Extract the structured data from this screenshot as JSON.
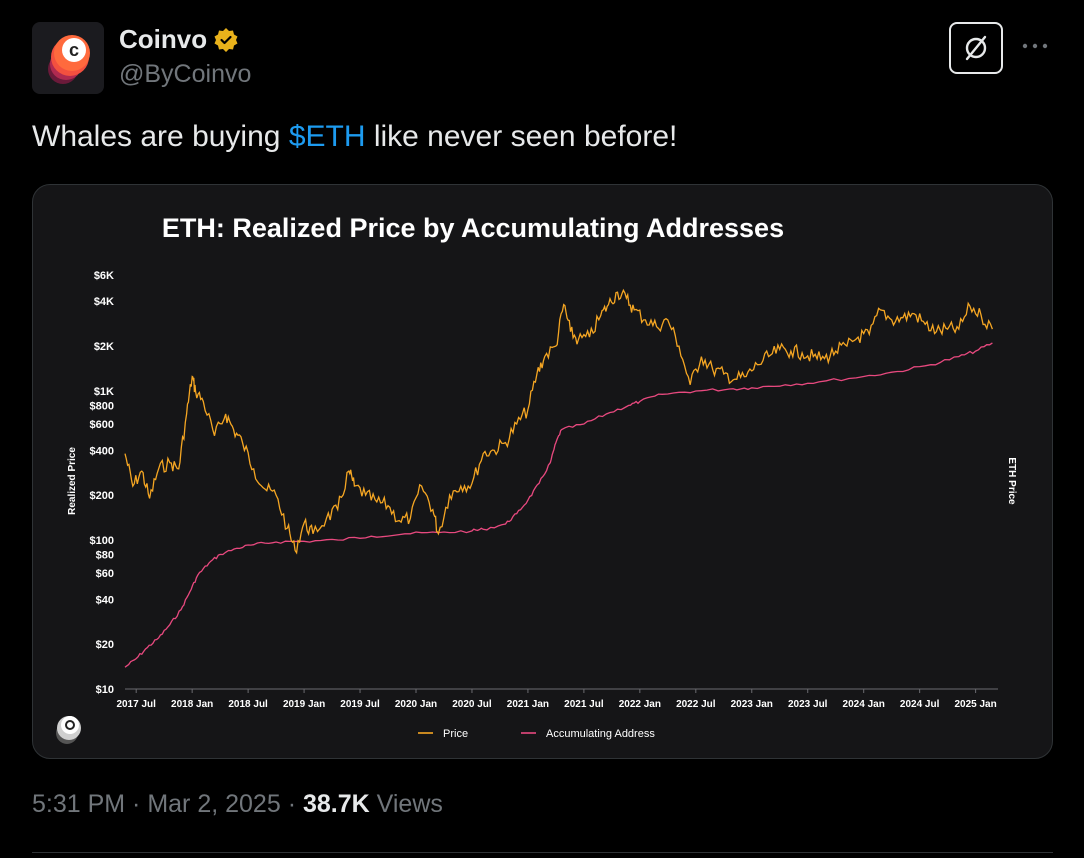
{
  "author": {
    "name": "Coinvo",
    "handle": "@ByCoinvo",
    "avatar_letter": "c",
    "verified_color": "#e9b21b"
  },
  "header_icons": {
    "grok": "grok-icon",
    "more": "more-horizontal-icon"
  },
  "tweet": {
    "text_before": "Whales are buying ",
    "cashtag": "$ETH",
    "text_after": " like never seen before!",
    "link_color": "#1d9bf0"
  },
  "meta": {
    "time": "5:31 PM",
    "sep1": " · ",
    "date": "Mar 2, 2025",
    "sep2": " · ",
    "views_count": "38.7K",
    "views_label": " Views"
  },
  "chart_data": {
    "type": "line",
    "title": "ETH: Realized Price by Accumulating Addresses",
    "ylabel": "Realized Price",
    "ylabel_right": "ETH Price",
    "yscale": "log",
    "ylim": [
      10,
      6000
    ],
    "yticks": [
      10,
      20,
      40,
      60,
      80,
      100,
      200,
      400,
      600,
      800,
      1000,
      2000,
      4000,
      6000
    ],
    "ytick_labels": [
      "$10",
      "$20",
      "$40",
      "$60",
      "$80",
      "$100",
      "$200",
      "$400",
      "$600",
      "$800",
      "$1K",
      "$2K",
      "$4K",
      "$6K"
    ],
    "xlim": [
      2017.4,
      2025.2
    ],
    "xticks": [
      2017.5,
      2018.0,
      2018.5,
      2019.0,
      2019.5,
      2020.0,
      2020.5,
      2021.0,
      2021.5,
      2022.0,
      2022.5,
      2023.0,
      2023.5,
      2024.0,
      2024.5,
      2025.0
    ],
    "xtick_labels": [
      "2017 Jul",
      "2018 Jan",
      "2018 Jul",
      "2019 Jan",
      "2019 Jul",
      "2020 Jan",
      "2020 Jul",
      "2021 Jan",
      "2021 Jul",
      "2022 Jan",
      "2022 Jul",
      "2023 Jan",
      "2023 Jul",
      "2024 Jan",
      "2024 Jul",
      "2025 Jan"
    ],
    "legend_position": "bottom",
    "grid": false,
    "series": [
      {
        "name": "Price",
        "color": "#f5a623",
        "x": [
          2017.4,
          2017.47,
          2017.55,
          2017.62,
          2017.7,
          2017.8,
          2017.88,
          2017.95,
          2018.0,
          2018.03,
          2018.1,
          2018.2,
          2018.3,
          2018.37,
          2018.45,
          2018.55,
          2018.65,
          2018.75,
          2018.85,
          2018.92,
          2019.0,
          2019.08,
          2019.2,
          2019.3,
          2019.4,
          2019.45,
          2019.55,
          2019.65,
          2019.75,
          2019.85,
          2019.95,
          2020.05,
          2020.15,
          2020.2,
          2020.3,
          2020.4,
          2020.5,
          2020.6,
          2020.7,
          2020.8,
          2020.9,
          2021.0,
          2021.08,
          2021.15,
          2021.25,
          2021.32,
          2021.38,
          2021.45,
          2021.55,
          2021.65,
          2021.72,
          2021.8,
          2021.88,
          2021.95,
          2022.05,
          2022.15,
          2022.25,
          2022.35,
          2022.45,
          2022.55,
          2022.65,
          2022.75,
          2022.85,
          2022.95,
          2023.05,
          2023.15,
          2023.25,
          2023.35,
          2023.45,
          2023.55,
          2023.65,
          2023.75,
          2023.85,
          2023.95,
          2024.05,
          2024.15,
          2024.25,
          2024.35,
          2024.45,
          2024.55,
          2024.65,
          2024.75,
          2024.85,
          2024.95,
          2025.05,
          2025.15
        ],
        "y": [
          380,
          230,
          290,
          190,
          300,
          330,
          300,
          700,
          1250,
          1000,
          850,
          500,
          700,
          550,
          450,
          300,
          220,
          200,
          120,
          85,
          130,
          110,
          140,
          160,
          290,
          230,
          200,
          180,
          170,
          135,
          140,
          230,
          160,
          110,
          200,
          230,
          240,
          380,
          400,
          450,
          600,
          750,
          1300,
          1700,
          2000,
          3800,
          2500,
          2200,
          2300,
          3200,
          3800,
          4600,
          4200,
          3500,
          3000,
          2700,
          3000,
          2000,
          1100,
          1700,
          1400,
          1300,
          1200,
          1250,
          1500,
          1700,
          1900,
          1850,
          1800,
          1700,
          1650,
          1850,
          2000,
          2300,
          2400,
          3500,
          3000,
          3100,
          3300,
          2800,
          2500,
          2600,
          2600,
          3700,
          3200,
          2600
        ]
      },
      {
        "name": "Accumulating Address",
        "color": "#e8497f",
        "x": [
          2017.4,
          2017.5,
          2017.6,
          2017.7,
          2017.8,
          2017.9,
          2017.98,
          2018.05,
          2018.15,
          2018.25,
          2018.4,
          2018.55,
          2018.75,
          2019.0,
          2019.3,
          2019.6,
          2019.9,
          2020.2,
          2020.5,
          2020.6,
          2020.8,
          2020.9,
          2021.0,
          2021.1,
          2021.2,
          2021.25,
          2021.3,
          2021.5,
          2021.7,
          2021.9,
          2022.0,
          2022.2,
          2022.5,
          2022.8,
          2023.0,
          2023.3,
          2023.6,
          2024.0,
          2024.3,
          2024.6,
          2024.85,
          2025.0,
          2025.15
        ],
        "y": [
          14,
          16,
          19,
          22,
          27,
          34,
          45,
          58,
          70,
          80,
          88,
          93,
          97,
          98,
          100,
          106,
          110,
          112,
          115,
          118,
          128,
          150,
          185,
          240,
          330,
          450,
          550,
          600,
          700,
          800,
          850,
          950,
          1000,
          1030,
          1050,
          1100,
          1150,
          1250,
          1350,
          1500,
          1700,
          1850,
          2100
        ]
      }
    ]
  }
}
